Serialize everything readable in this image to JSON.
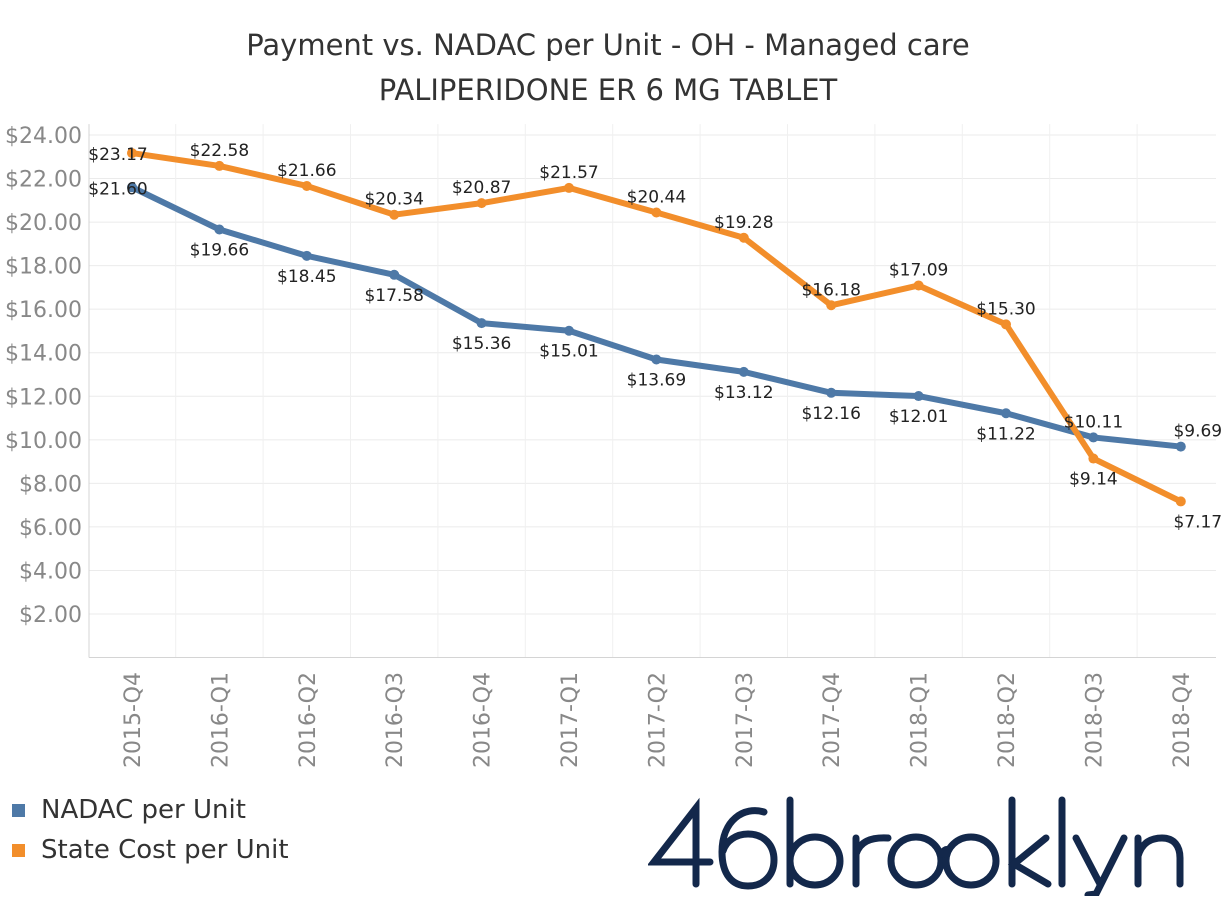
{
  "chart_data": {
    "type": "line",
    "title": "Payment vs. NADAC per Unit - OH - Managed care",
    "subtitle": "PALIPERIDONE ER 6 MG TABLET",
    "categories": [
      "2015-Q4",
      "2016-Q1",
      "2016-Q2",
      "2016-Q3",
      "2016-Q4",
      "2017-Q1",
      "2017-Q2",
      "2017-Q3",
      "2017-Q4",
      "2018-Q1",
      "2018-Q2",
      "2018-Q3",
      "2018-Q4"
    ],
    "series": [
      {
        "name": "NADAC per Unit",
        "color": "#4e79a7",
        "values": [
          21.6,
          19.66,
          18.45,
          17.58,
          15.36,
          15.01,
          13.69,
          13.12,
          12.16,
          12.01,
          11.22,
          10.11,
          9.69
        ],
        "labels": [
          "$21.60",
          "$19.66",
          "$18.45",
          "$17.58",
          "$15.36",
          "$15.01",
          "$13.69",
          "$13.12",
          "$12.16",
          "$12.01",
          "$11.22",
          "$10.11",
          "$9.69"
        ]
      },
      {
        "name": "State Cost per Unit",
        "color": "#f28e2b",
        "values": [
          23.17,
          22.58,
          21.66,
          20.34,
          20.87,
          21.57,
          20.44,
          19.28,
          16.18,
          17.09,
          15.3,
          9.14,
          7.17
        ],
        "labels": [
          "$23.17",
          "$22.58",
          "$21.66",
          "$20.34",
          "$20.87",
          "$21.57",
          "$20.44",
          "$19.28",
          "$16.18",
          "$17.09",
          "$15.30",
          "$9.14",
          "$7.17"
        ]
      }
    ],
    "yticks": [
      "$2.00",
      "$4.00",
      "$6.00",
      "$8.00",
      "$10.00",
      "$12.00",
      "$14.00",
      "$16.00",
      "$18.00",
      "$20.00",
      "$22.00",
      "$24.00"
    ],
    "ytick_values": [
      2,
      4,
      6,
      8,
      10,
      12,
      14,
      16,
      18,
      20,
      22,
      24
    ],
    "ylim": [
      0,
      24.5
    ],
    "grid": true,
    "legend_position": "bottom-left"
  },
  "legend": [
    {
      "label": "NADAC per Unit",
      "color": "#4e79a7"
    },
    {
      "label": "State Cost per Unit",
      "color": "#f28e2b"
    }
  ],
  "logo": {
    "text": "46brooklyn",
    "color": "#13284b"
  }
}
